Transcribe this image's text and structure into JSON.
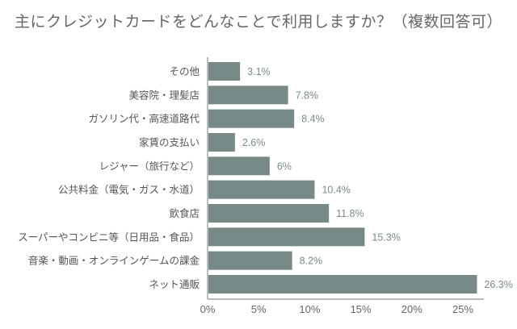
{
  "chart_data": {
    "type": "bar",
    "orientation": "horizontal",
    "title": "主にクレジットカードをどんなことで利用しますか？（複数回答可）",
    "categories": [
      "その他",
      "美容院・理髪店",
      "ガソリン代・高速道路代",
      "家賃の支払い",
      "レジャー（旅行など）",
      "公共料金（電気・ガス・水道）",
      "飲食店",
      "スーパーやコンビニ等（日用品・食品）",
      "音楽・動画・オンラインゲームの課金",
      "ネット通販"
    ],
    "values": [
      3.1,
      7.8,
      8.4,
      2.6,
      6,
      10.4,
      11.8,
      15.3,
      8.2,
      26.3
    ],
    "value_labels": [
      "3.1%",
      "7.8%",
      "8.4%",
      "2.6%",
      "6%",
      "10.4%",
      "11.8%",
      "15.3%",
      "8.2%",
      "26.3%"
    ],
    "xticks": [
      "0%",
      "5%",
      "10%",
      "15%",
      "20%",
      "25%"
    ],
    "xtick_values": [
      0,
      5,
      10,
      15,
      20,
      25
    ],
    "xlim": [
      0,
      26.3
    ],
    "grid": false,
    "colors": {
      "bar": "#778a87",
      "value_label": "#7a8c8a",
      "axis": "#bbbbbb"
    }
  }
}
